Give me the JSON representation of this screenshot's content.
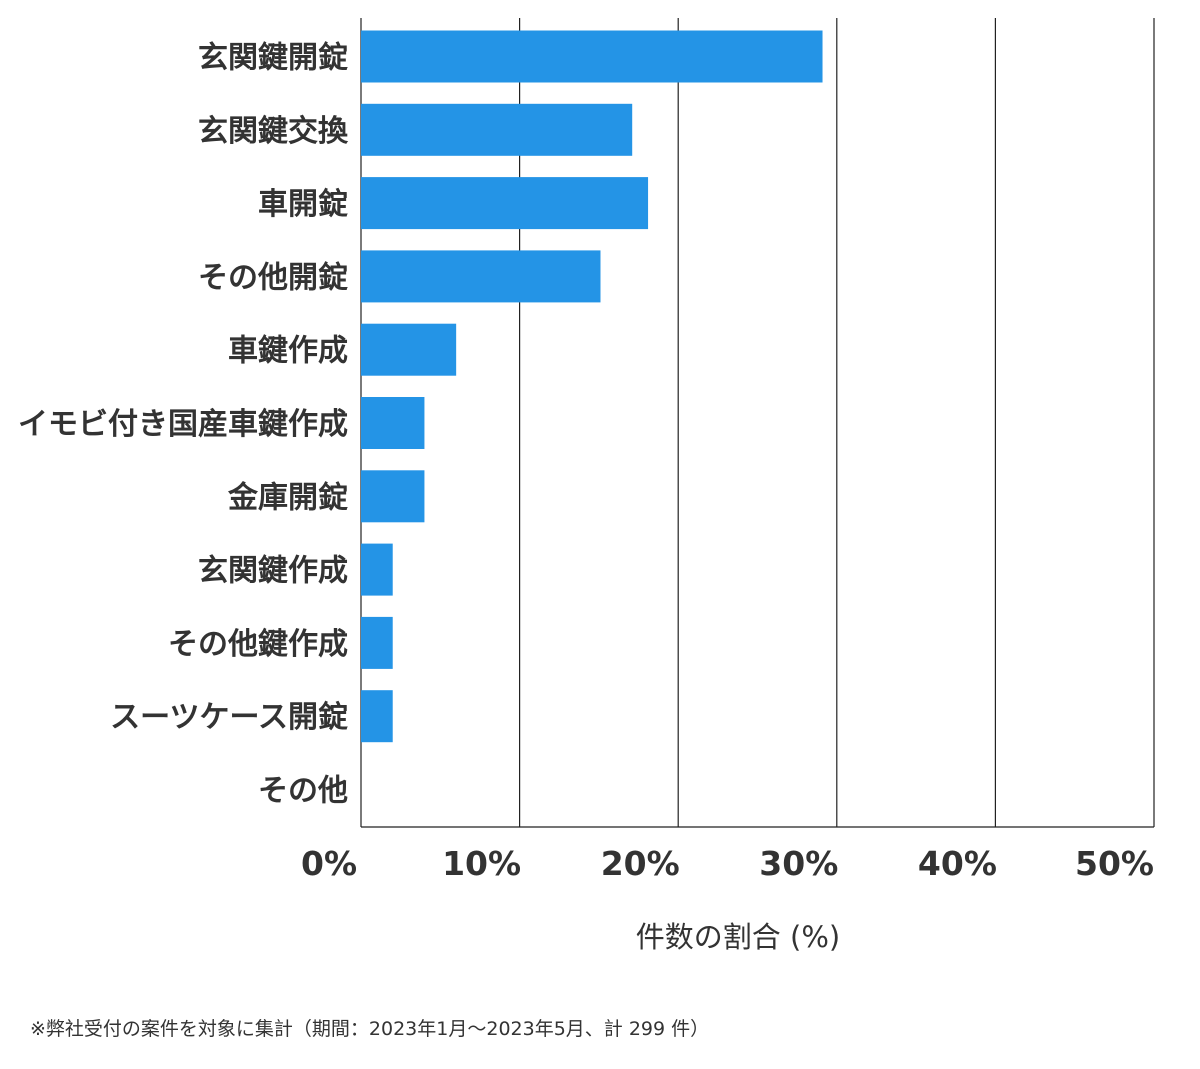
{
  "chart_data": {
    "type": "bar",
    "orientation": "horizontal",
    "categories": [
      "玄関鍵開錠",
      "玄関鍵交換",
      "車開錠",
      "その他開錠",
      "車鍵作成",
      "イモビ付き国産車鍵作成",
      "金庫開錠",
      "玄関鍵作成",
      "その他鍵作成",
      "スーツケース開錠",
      "その他"
    ],
    "values": [
      29.1,
      17.1,
      18.1,
      15.1,
      6.0,
      4.0,
      4.0,
      2.0,
      2.0,
      2.0,
      0
    ],
    "xlim": [
      0,
      50
    ],
    "xticks": [
      0,
      10,
      20,
      30,
      40,
      50
    ],
    "tick_labels": [
      "0%",
      "10%",
      "20%",
      "30%",
      "40%",
      "50%"
    ],
    "xlabel": "件数の割合 (%)",
    "ylabel": "",
    "title": "",
    "grid": true,
    "bar_color": "#2494e6",
    "grid_color": "#222222"
  },
  "footnote": "※弊社受付の案件を対象に集計（期間：2023年1月～2023年5月、計 299 件）"
}
